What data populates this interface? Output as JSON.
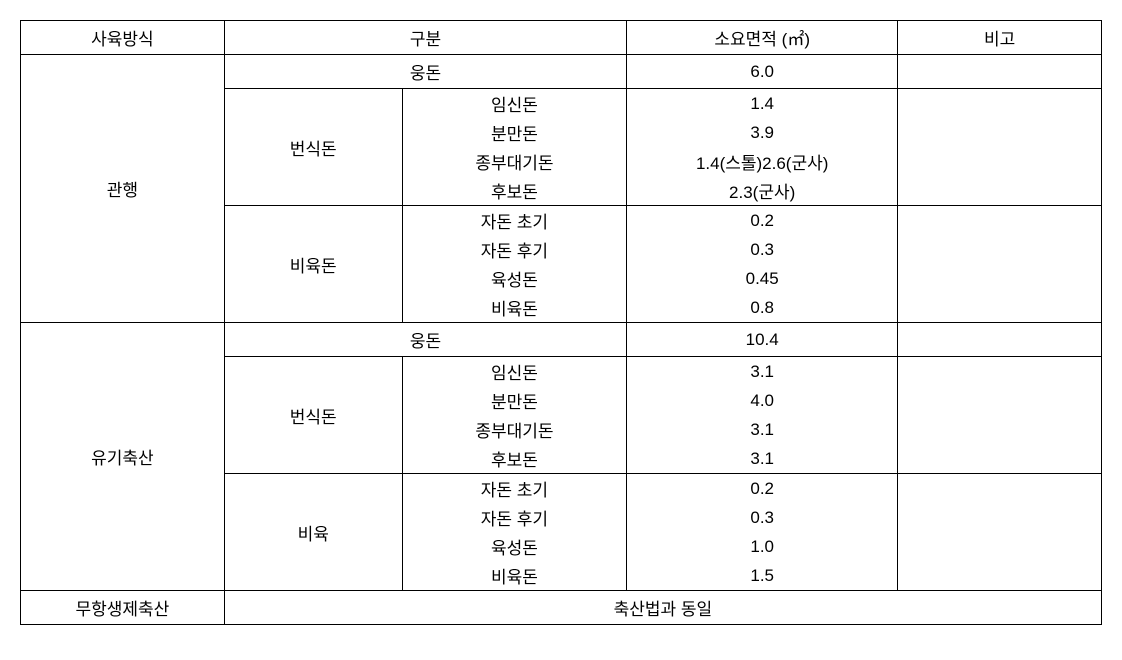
{
  "headers": {
    "method": "사육방식",
    "category": "구분",
    "area": "소요면적 (㎡)",
    "note": "비고"
  },
  "methods": {
    "conventional": "관행",
    "organic": "유기축산",
    "noAntibiotic": "무항생제축산"
  },
  "categories": {
    "boar": "웅돈",
    "breeding": "번식돈",
    "fattening": "비육돈",
    "fatteningShort": "비육"
  },
  "subcategories": {
    "pregnant": "임신돈",
    "farrowing": "분만돈",
    "waiting": "종부대기돈",
    "replacement": "후보돈",
    "pigletEarly": "자돈 초기",
    "pigletLate": "자돈 후기",
    "growing": "육성돈",
    "fattening": "비육돈"
  },
  "values": {
    "conv": {
      "boar": "6.0",
      "pregnant": "1.4",
      "farrowing": "3.9",
      "waiting": "1.4(스톨)2.6(군사)",
      "replacement": "2.3(군사)",
      "pigletEarly": "0.2",
      "pigletLate": "0.3",
      "growing": "0.45",
      "fattening": "0.8"
    },
    "org": {
      "boar": "10.4",
      "pregnant": "3.1",
      "farrowing": "4.0",
      "waiting": "3.1",
      "replacement": "3.1",
      "pigletEarly": "0.2",
      "pigletLate": "0.3",
      "growing": "1.0",
      "fattening": "1.5"
    }
  },
  "footer": {
    "sameAs": "축산법과 동일"
  },
  "styling": {
    "border_color": "#000000",
    "background_color": "#ffffff",
    "font_size": 17,
    "font_family": "Malgun Gothic"
  }
}
